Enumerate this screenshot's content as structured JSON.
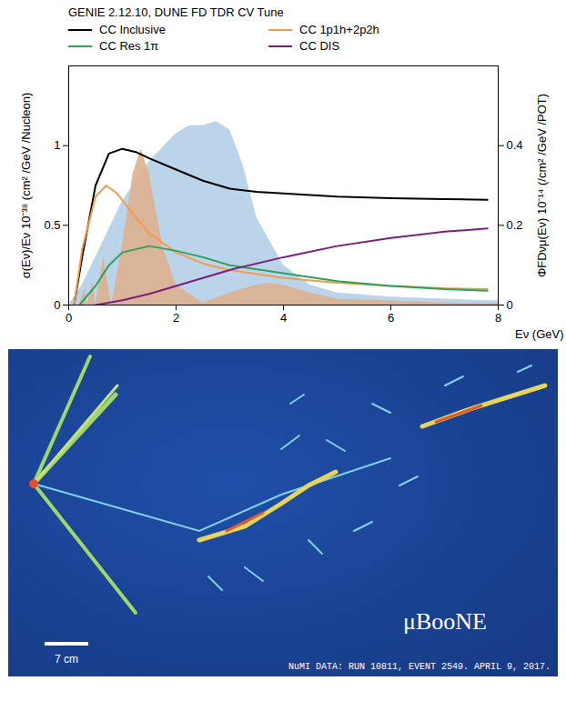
{
  "chart_data": {
    "type": "line",
    "title": "GENIE 2.12.10, DUNE FD TDR CV Tune",
    "x_label": "Eν (GeV)",
    "y_label": "σ(Eν)/Eν 10⁻³⁸ (cm² /GeV /Nucleon)",
    "y2_label": "ΦFDνμ(Eν) 10⁻¹⁴ (/cm² /GeV /POT)",
    "xlim": [
      0,
      8
    ],
    "xticks": [
      0,
      2,
      4,
      6,
      8
    ],
    "ylim": [
      0,
      1.5
    ],
    "yticks": [
      0,
      0.5,
      1
    ],
    "y2lim": [
      0,
      0.6
    ],
    "y2ticks": [
      0,
      0.2,
      0.4
    ],
    "legend": "top",
    "series": [
      {
        "type": "area",
        "axis": "y2",
        "color": "#b4cfe8",
        "x": [
          0,
          0.25,
          0.5,
          1,
          1.5,
          2,
          2.25,
          2.5,
          2.75,
          3,
          3.25,
          3.5,
          4,
          4.5,
          5,
          6,
          7,
          8
        ],
        "values": [
          0,
          0.05,
          0.12,
          0.26,
          0.36,
          0.43,
          0.45,
          0.45,
          0.46,
          0.44,
          0.35,
          0.22,
          0.1,
          0.05,
          0.03,
          0.02,
          0.015,
          0.01
        ]
      },
      {
        "type": "area",
        "axis": "y2",
        "color": "#ddb08f",
        "x": [
          0.2,
          0.3,
          0.35,
          0.45,
          0.5,
          0.65,
          0.8,
          1.0,
          1.2,
          1.35,
          1.5,
          1.75,
          2,
          2.5,
          3,
          3.5,
          3.75,
          4,
          4.5,
          5,
          6,
          7,
          8
        ],
        "values": [
          0,
          0.04,
          0,
          0.06,
          0,
          0.12,
          0,
          0.15,
          0.33,
          0.39,
          0.33,
          0.15,
          0.05,
          0.005,
          0.03,
          0.05,
          0.055,
          0.05,
          0.03,
          0.015,
          0.01,
          0.005,
          0.004
        ]
      },
      {
        "name": "CC Inclusive",
        "type": "line",
        "color": "#000000",
        "x": [
          0.1,
          0.25,
          0.5,
          0.75,
          1.0,
          1.25,
          1.5,
          2,
          2.5,
          3,
          3.5,
          4,
          5,
          6,
          7,
          7.8
        ],
        "values": [
          0,
          0.3,
          0.75,
          0.95,
          0.98,
          0.96,
          0.92,
          0.85,
          0.78,
          0.73,
          0.71,
          0.7,
          0.68,
          0.67,
          0.665,
          0.66
        ]
      },
      {
        "name": "CC 1p1h+2p2h",
        "type": "line",
        "color": "#f29c4c",
        "x": [
          0.1,
          0.25,
          0.5,
          0.7,
          0.9,
          1.25,
          1.5,
          2,
          2.5,
          3,
          4,
          5,
          6,
          7,
          7.8
        ],
        "values": [
          0,
          0.35,
          0.68,
          0.75,
          0.7,
          0.55,
          0.45,
          0.33,
          0.26,
          0.22,
          0.17,
          0.14,
          0.12,
          0.105,
          0.1
        ]
      },
      {
        "name": "CC Res 1π",
        "type": "line",
        "color": "#2ca25f",
        "x": [
          0.2,
          0.5,
          0.75,
          1,
          1.5,
          2,
          2.5,
          3,
          4,
          5,
          6,
          7,
          7.8
        ],
        "values": [
          0,
          0.12,
          0.25,
          0.33,
          0.37,
          0.34,
          0.3,
          0.25,
          0.2,
          0.15,
          0.12,
          0.1,
          0.09
        ]
      },
      {
        "name": "CC DIS",
        "type": "line",
        "color": "#7b1f7a",
        "x": [
          0.5,
          1,
          1.5,
          2,
          3,
          4,
          5,
          6,
          7,
          7.8
        ],
        "values": [
          0,
          0.03,
          0.07,
          0.12,
          0.22,
          0.3,
          0.37,
          0.42,
          0.46,
          0.48
        ]
      }
    ]
  },
  "event_display": {
    "logo": "μBooNE",
    "scale_label": "7 cm",
    "caption": "NuMI DATA: RUN 10811, EVENT 2549. APRIL 9, 2017."
  }
}
